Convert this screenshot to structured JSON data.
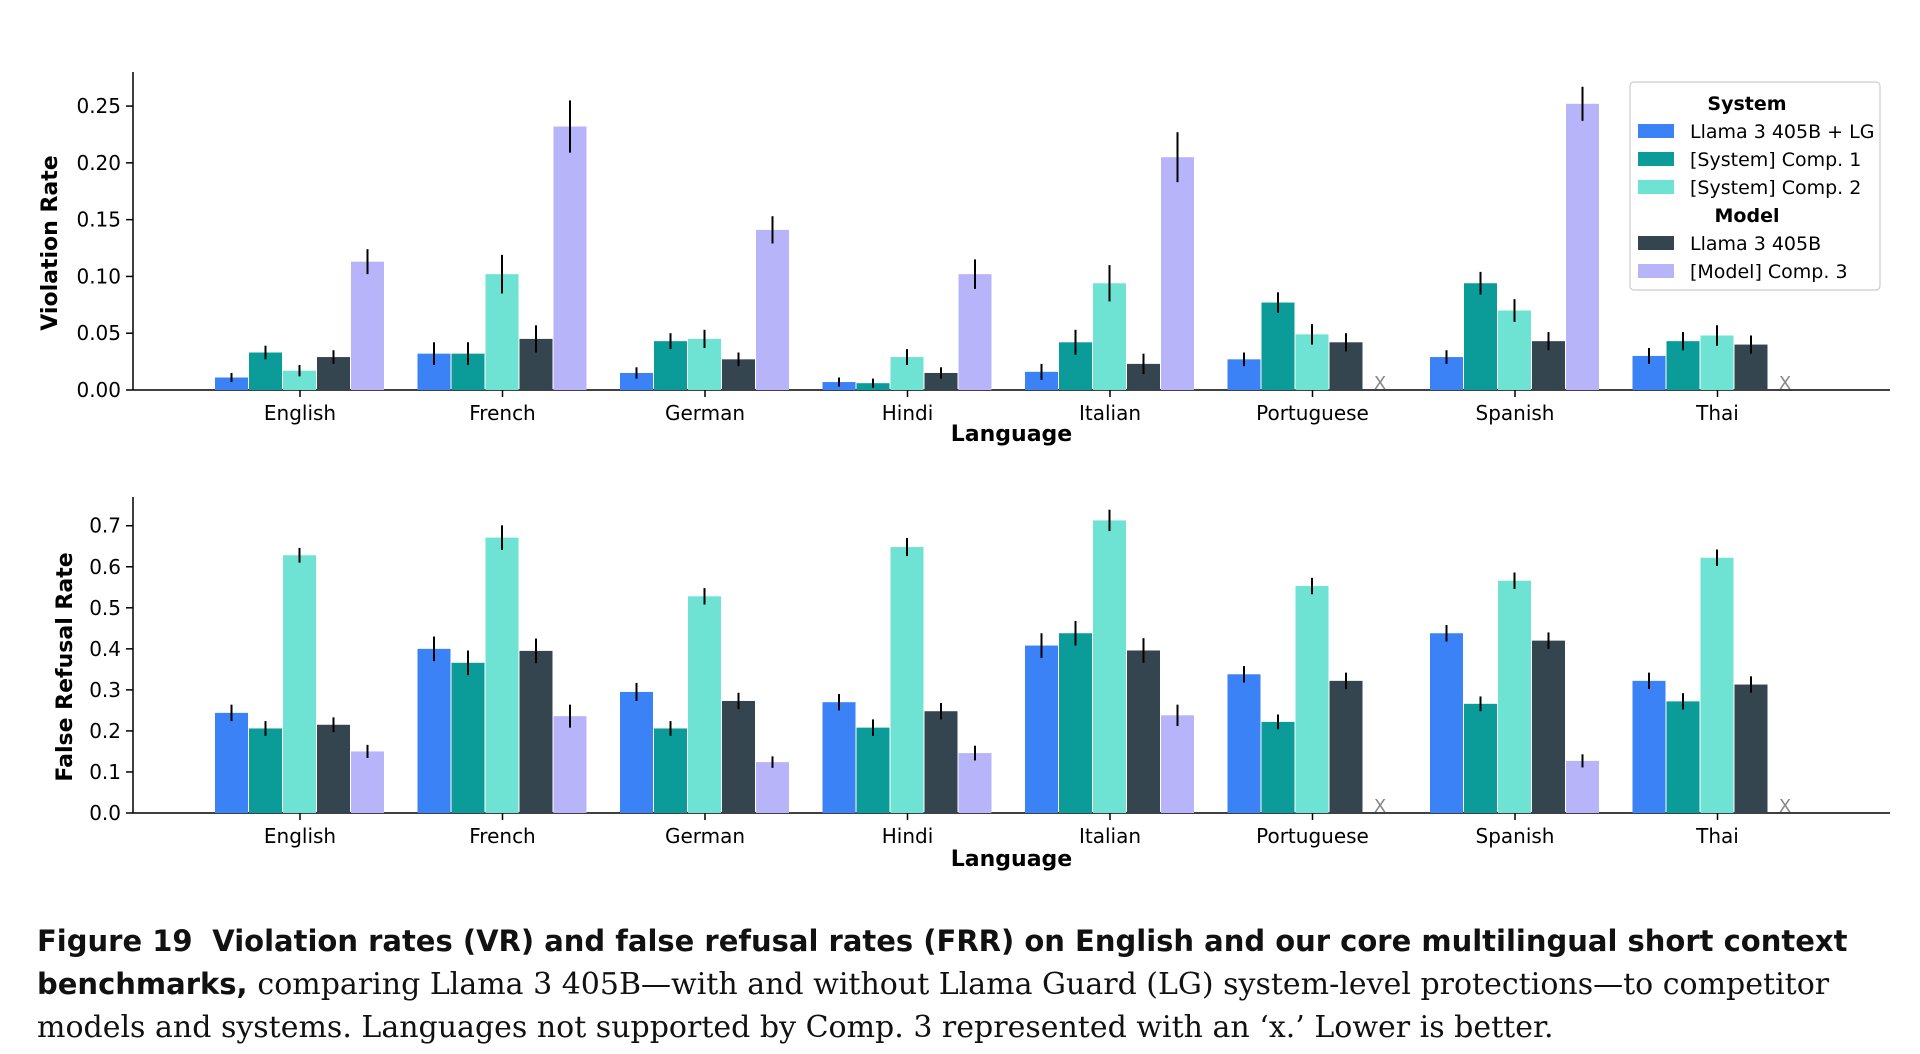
{
  "colors": {
    "Llama 3 405B + LG": "#3b82f6",
    "[System] Comp. 1": "#0b9b98",
    "[System] Comp. 2": "#6ee3d3",
    "Llama 3 405B": "#34454f",
    "[Model] Comp. 3": "#b8b4fa"
  },
  "legend": {
    "groups": [
      {
        "title": "System",
        "entries": [
          "Llama 3 405B + LG",
          "[System] Comp. 1",
          "[System] Comp. 2"
        ]
      },
      {
        "title": "Model",
        "entries": [
          "Llama 3 405B",
          "[Model] Comp. 3"
        ]
      }
    ],
    "placement": "top-right"
  },
  "chart_data": [
    {
      "type": "bar",
      "xlabel": "Language",
      "ylabel": "Violation Rate",
      "ylim": [
        0,
        0.28
      ],
      "yticks": [
        "0.00",
        "0.05",
        "0.10",
        "0.15",
        "0.20",
        "0.25"
      ],
      "grid": false,
      "categories": [
        "English",
        "French",
        "German",
        "Hindi",
        "Italian",
        "Portuguese",
        "Spanish",
        "Thai"
      ],
      "missing_marker": "X",
      "series": [
        {
          "name": "Llama 3 405B + LG",
          "values": [
            0.011,
            0.032,
            0.015,
            0.007,
            0.016,
            0.027,
            0.029,
            0.03
          ],
          "errors": [
            0.004,
            0.01,
            0.005,
            0.004,
            0.007,
            0.006,
            0.006,
            0.007
          ]
        },
        {
          "name": "[System] Comp. 1",
          "values": [
            0.033,
            0.032,
            0.043,
            0.006,
            0.042,
            0.077,
            0.094,
            0.043
          ],
          "errors": [
            0.006,
            0.01,
            0.007,
            0.004,
            0.011,
            0.009,
            0.01,
            0.008
          ]
        },
        {
          "name": "[System] Comp. 2",
          "values": [
            0.017,
            0.102,
            0.045,
            0.029,
            0.094,
            0.049,
            0.07,
            0.048
          ],
          "errors": [
            0.005,
            0.017,
            0.008,
            0.007,
            0.016,
            0.009,
            0.01,
            0.009
          ]
        },
        {
          "name": "Llama 3 405B",
          "values": [
            0.029,
            0.045,
            0.027,
            0.015,
            0.023,
            0.042,
            0.043,
            0.04
          ],
          "errors": [
            0.006,
            0.012,
            0.006,
            0.005,
            0.009,
            0.008,
            0.008,
            0.008
          ]
        },
        {
          "name": "[Model] Comp. 3",
          "values": [
            0.113,
            0.232,
            0.141,
            0.102,
            0.205,
            null,
            0.252,
            null
          ],
          "errors": [
            0.011,
            0.023,
            0.012,
            0.013,
            0.022,
            null,
            0.015,
            null
          ]
        }
      ]
    },
    {
      "type": "bar",
      "xlabel": "Language",
      "ylabel": "False Refusal Rate",
      "ylim": [
        0,
        0.77
      ],
      "yticks": [
        "0.0",
        "0.1",
        "0.2",
        "0.3",
        "0.4",
        "0.5",
        "0.6",
        "0.7"
      ],
      "grid": false,
      "categories": [
        "English",
        "French",
        "German",
        "Hindi",
        "Italian",
        "Portuguese",
        "Spanish",
        "Thai"
      ],
      "missing_marker": "X",
      "series": [
        {
          "name": "Llama 3 405B + LG",
          "values": [
            0.244,
            0.4,
            0.295,
            0.27,
            0.408,
            0.338,
            0.438,
            0.322
          ],
          "errors": [
            0.02,
            0.03,
            0.022,
            0.02,
            0.03,
            0.02,
            0.02,
            0.02
          ]
        },
        {
          "name": "[System] Comp. 1",
          "values": [
            0.206,
            0.366,
            0.206,
            0.208,
            0.438,
            0.222,
            0.266,
            0.272
          ],
          "errors": [
            0.018,
            0.03,
            0.018,
            0.02,
            0.03,
            0.018,
            0.018,
            0.02
          ]
        },
        {
          "name": "[System] Comp. 2",
          "values": [
            0.628,
            0.671,
            0.528,
            0.648,
            0.713,
            0.553,
            0.566,
            0.622
          ],
          "errors": [
            0.018,
            0.03,
            0.02,
            0.022,
            0.026,
            0.02,
            0.02,
            0.02
          ]
        },
        {
          "name": "Llama 3 405B",
          "values": [
            0.215,
            0.395,
            0.273,
            0.248,
            0.396,
            0.322,
            0.42,
            0.313
          ],
          "errors": [
            0.018,
            0.03,
            0.02,
            0.02,
            0.03,
            0.02,
            0.02,
            0.02
          ]
        },
        {
          "name": "[Model] Comp. 3",
          "values": [
            0.15,
            0.236,
            0.124,
            0.146,
            0.238,
            null,
            0.127,
            null
          ],
          "errors": [
            0.016,
            0.028,
            0.014,
            0.018,
            0.026,
            null,
            0.016,
            null
          ]
        }
      ]
    }
  ],
  "caption": {
    "label": "Figure 19",
    "heading": "Violation rates (VR) and false refusal rates (FRR) on English and our core multilingual short context benchmarks,",
    "text": "comparing Llama 3 405B—with and without Llama Guard (LG) system-level protections—to competitor models and systems. Languages not supported by Comp. 3 represented with an ‘x.’ Lower is better."
  }
}
